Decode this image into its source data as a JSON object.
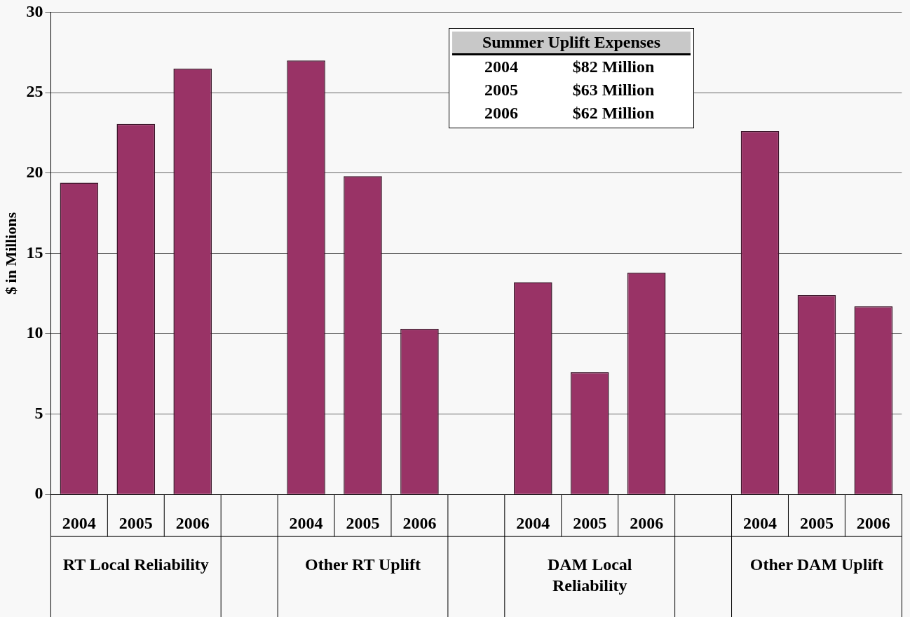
{
  "chart_data": {
    "type": "bar",
    "ylabel": "$ in Millions",
    "categories": [
      "2004",
      "2005",
      "2006",
      null,
      "2004",
      "2005",
      "2006",
      null,
      "2004",
      "2005",
      "2006",
      null,
      "2004",
      "2005",
      "2006"
    ],
    "values": [
      19.4,
      23.05,
      26.5,
      null,
      27.0,
      19.8,
      10.3,
      null,
      13.2,
      7.6,
      13.8,
      null,
      22.6,
      12.4,
      11.7
    ],
    "color": "#993366",
    "ylim": [
      0,
      30
    ],
    "yticks": [
      0,
      5,
      10,
      15,
      20,
      25,
      30
    ],
    "grid": "y",
    "annotations": [
      "RT Local Reliability",
      "Other RT Uplift",
      "DAM Local Reliability",
      "Other DAM Uplift",
      "Summer Uplift Expenses",
      "2004",
      "$82 Million",
      "2005",
      "$63 Million",
      "2006",
      "$62 Million"
    ]
  }
}
